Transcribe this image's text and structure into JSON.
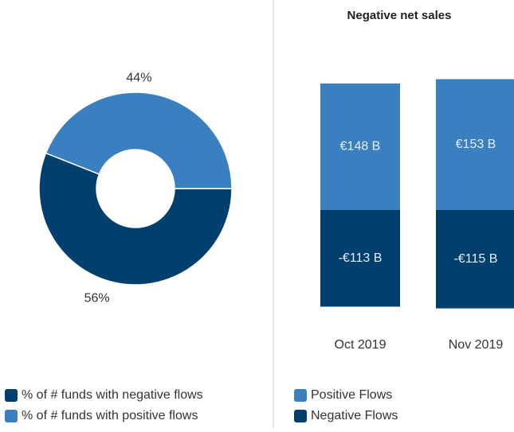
{
  "chart_data": [
    {
      "type": "pie",
      "categories": [
        "% of # funds with negative flows",
        "% of # funds with positive flows"
      ],
      "values": [
        56,
        44
      ],
      "value_labels": [
        "56%",
        "44%"
      ],
      "colors": [
        "#003f6e",
        "#3a7fbf"
      ],
      "donut": true,
      "legend": "bottom"
    },
    {
      "type": "bar",
      "title": "Negative net sales",
      "categories": [
        "Oct 2019",
        "Nov 2019"
      ],
      "series": [
        {
          "name": "Positive Flows",
          "color": "#3a7fbf",
          "values": [
            148,
            153
          ],
          "value_labels": [
            "€148 B",
            "€153 B"
          ]
        },
        {
          "name": "Negative Flows",
          "color": "#003f6e",
          "values": [
            -113,
            -115
          ],
          "value_labels": [
            "-€113 B",
            "-€115 B"
          ]
        }
      ],
      "stacked": true,
      "ylim": [
        -120,
        160
      ],
      "legend": "bottom"
    }
  ]
}
